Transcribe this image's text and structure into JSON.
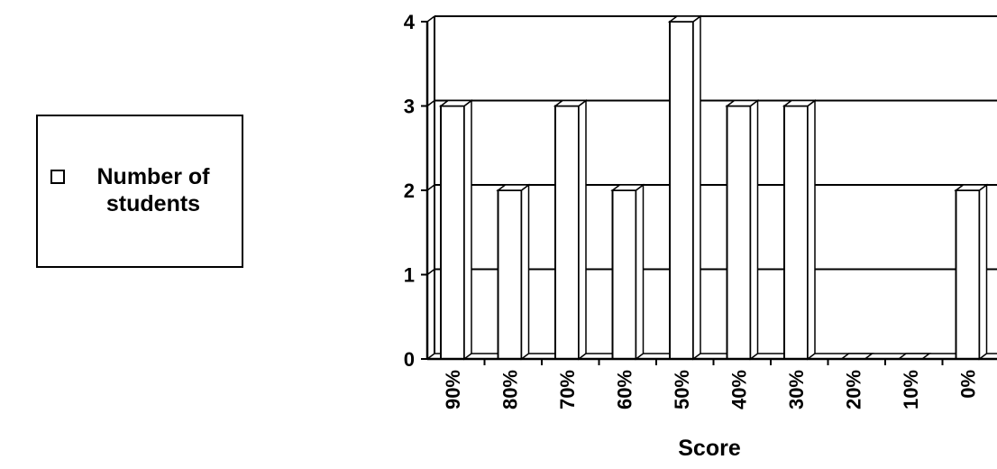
{
  "chart_data": {
    "type": "bar",
    "title": "",
    "xlabel": "Score",
    "ylabel": "",
    "categories": [
      "90%",
      "80%",
      "70%",
      "60%",
      "50%",
      "40%",
      "30%",
      "20%",
      "10%",
      "0%"
    ],
    "series": [
      {
        "name": "Number of students",
        "values": [
          3,
          2,
          3,
          2,
          4,
          3,
          3,
          0,
          0,
          2
        ]
      }
    ],
    "yticks": [
      "0",
      "1",
      "2",
      "3",
      "4"
    ],
    "ylim": [
      0,
      4
    ],
    "grid": true,
    "legend_position": "left",
    "colors": {
      "bar_fill": "#ffffff",
      "bar_side": "#ffffff",
      "stroke": "#000000"
    }
  }
}
